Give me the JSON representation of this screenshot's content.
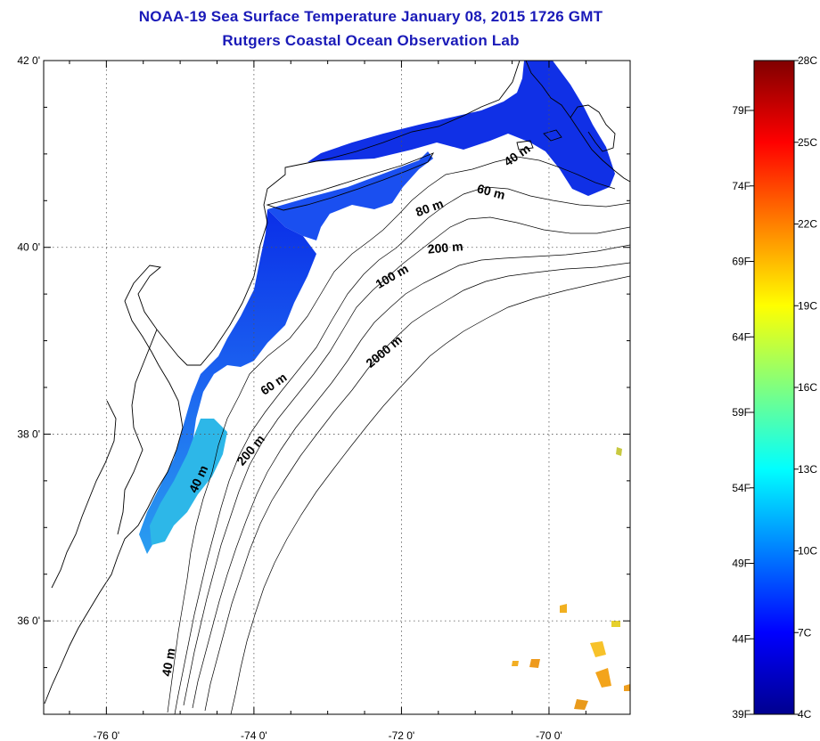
{
  "title": "NOAA-19 Sea Surface Temperature January 08, 2015 1726 GMT",
  "subtitle": "Rutgers Coastal Ocean Observation Lab",
  "map": {
    "lat_ticks": [
      {
        "value": 42,
        "label": "42 0'"
      },
      {
        "value": 40,
        "label": "40 0'"
      },
      {
        "value": 38,
        "label": "38 0'"
      },
      {
        "value": 36,
        "label": "36 0'"
      }
    ],
    "lon_ticks": [
      {
        "value": -76,
        "label": "-76 0'"
      },
      {
        "value": -74,
        "label": "-74 0'"
      },
      {
        "value": -72,
        "label": "-72 0'"
      },
      {
        "value": -70,
        "label": "-70 0'"
      }
    ],
    "contour_labels": [
      {
        "text": "40 m",
        "lon": -70.4,
        "lat": 40.95,
        "angle": -35
      },
      {
        "text": "60 m",
        "lon": -70.8,
        "lat": 40.55,
        "angle": 15
      },
      {
        "text": "80 m",
        "lon": -71.6,
        "lat": 40.38,
        "angle": -20
      },
      {
        "text": "200 m",
        "lon": -71.4,
        "lat": 39.95,
        "angle": -5
      },
      {
        "text": "100 m",
        "lon": -72.1,
        "lat": 39.65,
        "angle": -30
      },
      {
        "text": "2000 m",
        "lon": -72.2,
        "lat": 38.85,
        "angle": -40
      },
      {
        "text": "60 m",
        "lon": -73.7,
        "lat": 38.5,
        "angle": -35
      },
      {
        "text": "200 m",
        "lon": -74.0,
        "lat": 37.8,
        "angle": -50
      },
      {
        "text": "40 m",
        "lon": -74.7,
        "lat": 37.5,
        "angle": -65
      },
      {
        "text": "40 m",
        "lon": -75.1,
        "lat": 35.55,
        "angle": -80
      }
    ]
  },
  "colorbar": {
    "celsius_labels": [
      "28C",
      "25C",
      "22C",
      "19C",
      "16C",
      "13C",
      "10C",
      "7C",
      "4C"
    ],
    "fahrenheit_labels": [
      "79F",
      "74F",
      "69F",
      "64F",
      "59F",
      "54F",
      "49F",
      "44F",
      "39F"
    ]
  }
}
